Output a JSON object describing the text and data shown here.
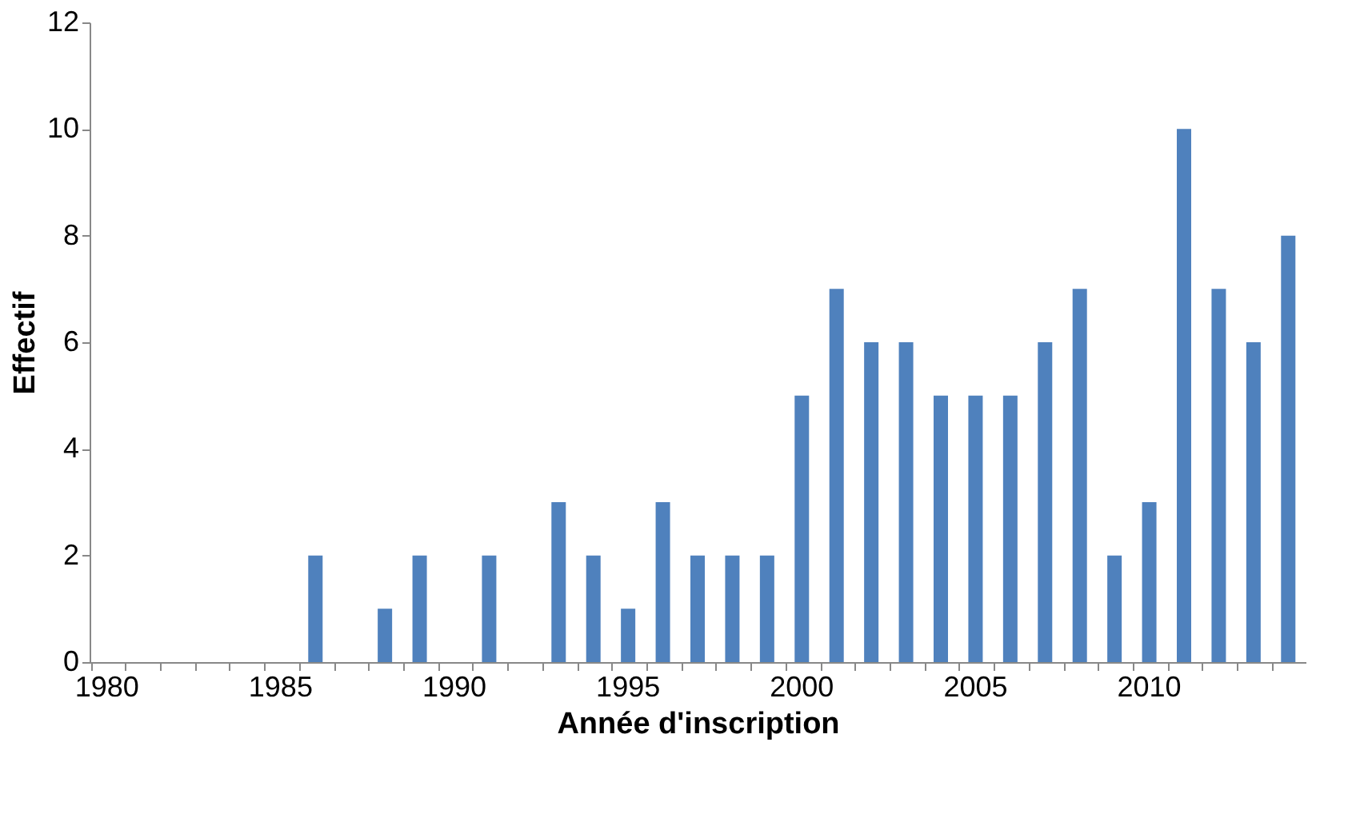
{
  "chart_data": {
    "type": "bar",
    "xlabel": "Année d'inscription",
    "ylabel": "Effectif",
    "categories": [
      "1980",
      null,
      null,
      null,
      null,
      "1985",
      null,
      null,
      null,
      null,
      "1990",
      null,
      null,
      null,
      null,
      "1995",
      null,
      null,
      null,
      null,
      "2000",
      null,
      null,
      null,
      null,
      "2005",
      null,
      null,
      null,
      null,
      "2010",
      null,
      null,
      null,
      null
    ],
    "values": [
      0,
      0,
      0,
      0,
      0,
      0,
      2,
      0,
      1,
      2,
      0,
      2,
      0,
      3,
      2,
      1,
      3,
      2,
      2,
      2,
      5,
      7,
      6,
      6,
      5,
      5,
      5,
      6,
      7,
      2,
      3,
      10,
      7,
      6,
      8
    ],
    "color": "#4f81bd",
    "ylim": [
      0,
      12
    ],
    "yticks": [
      0,
      2,
      4,
      6,
      8,
      10,
      12
    ],
    "grid": false
  }
}
